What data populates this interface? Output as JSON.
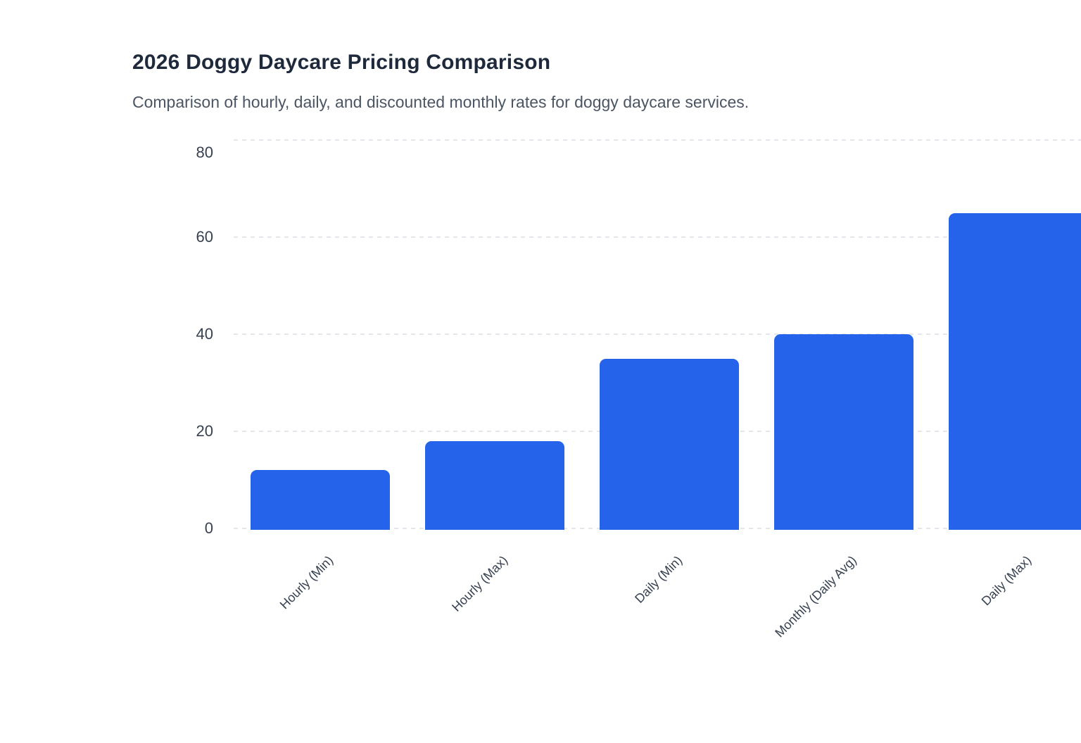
{
  "header": {
    "title": "2026 Doggy Daycare Pricing Comparison",
    "subtitle": "Comparison of hourly, daily, and discounted monthly rates for doggy daycare services."
  },
  "chart_data": {
    "type": "bar",
    "title": "2026 Doggy Daycare Pricing Comparison",
    "subtitle": "Comparison of hourly, daily, and discounted monthly rates for doggy daycare services.",
    "categories": [
      "Hourly (Min)",
      "Hourly (Max)",
      "Daily (Min)",
      "Monthly (Daily Avg)",
      "Daily (Max)"
    ],
    "values": [
      12,
      18,
      35,
      40,
      65
    ],
    "xlabel": "",
    "ylabel": "",
    "ylim": [
      0,
      80
    ],
    "yticks": [
      0,
      20,
      40,
      60,
      80
    ],
    "grid": "dashed-horizontal",
    "legend": "none",
    "x_tick_rotation": -45,
    "colors": {
      "bar": "#2563EB",
      "gridline": "#E3E6EA",
      "tick_label": "#374151",
      "title": "#1E293B",
      "subtitle": "#4B5563",
      "background": "#FFFFFF"
    }
  }
}
